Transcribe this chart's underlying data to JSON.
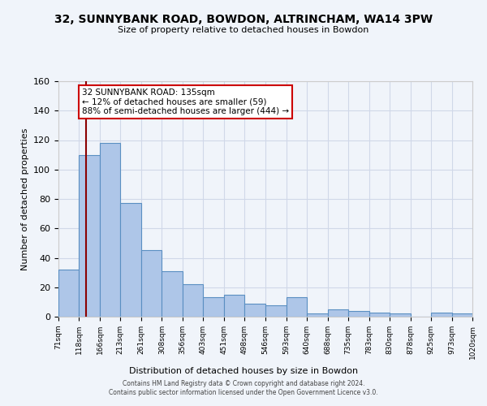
{
  "title": "32, SUNNYBANK ROAD, BOWDON, ALTRINCHAM, WA14 3PW",
  "subtitle": "Size of property relative to detached houses in Bowdon",
  "xlabel": "Distribution of detached houses by size in Bowdon",
  "ylabel": "Number of detached properties",
  "bins": [
    71,
    118,
    166,
    213,
    261,
    308,
    356,
    403,
    451,
    498,
    546,
    593,
    640,
    688,
    735,
    783,
    830,
    878,
    925,
    973,
    1020
  ],
  "counts": [
    32,
    110,
    118,
    77,
    45,
    31,
    22,
    13,
    15,
    9,
    8,
    13,
    2,
    5,
    4,
    3,
    2,
    0,
    3,
    2
  ],
  "bar_color": "#aec6e8",
  "bar_edge_color": "#5a8fc2",
  "grid_color": "#d0d8e8",
  "background_color": "#f0f4fa",
  "property_line_x": 135,
  "property_line_color": "#8b0000",
  "ylim": [
    0,
    160
  ],
  "yticks": [
    0,
    20,
    40,
    60,
    80,
    100,
    120,
    140,
    160
  ],
  "annotation_title": "32 SUNNYBANK ROAD: 135sqm",
  "annotation_line1": "← 12% of detached houses are smaller (59)",
  "annotation_line2": "88% of semi-detached houses are larger (444) →",
  "annotation_box_color": "#ffffff",
  "annotation_box_edge": "#cc0000",
  "footer_line1": "Contains HM Land Registry data © Crown copyright and database right 2024.",
  "footer_line2": "Contains public sector information licensed under the Open Government Licence v3.0.",
  "tick_labels": [
    "71sqm",
    "118sqm",
    "166sqm",
    "213sqm",
    "261sqm",
    "308sqm",
    "356sqm",
    "403sqm",
    "451sqm",
    "498sqm",
    "546sqm",
    "593sqm",
    "640sqm",
    "688sqm",
    "735sqm",
    "783sqm",
    "830sqm",
    "878sqm",
    "925sqm",
    "973sqm",
    "1020sqm"
  ]
}
